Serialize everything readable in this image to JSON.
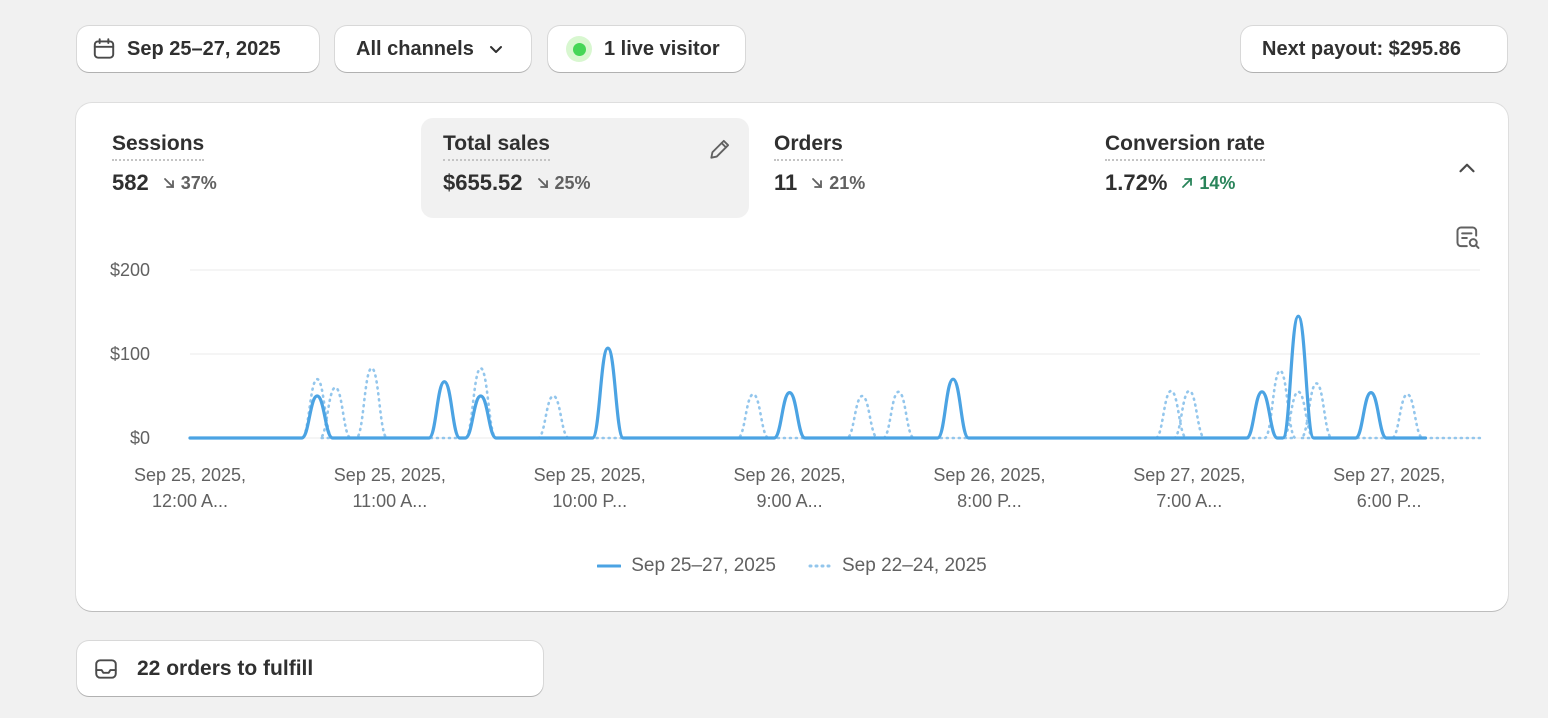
{
  "filters": {
    "date_range": "Sep 25–27, 2025",
    "channel": "All channels",
    "live_visitors": "1 live visitor",
    "payout": "Next payout: $295.86"
  },
  "metrics": [
    {
      "label": "Sessions",
      "value": "582",
      "delta": "37%",
      "direction": "down"
    },
    {
      "label": "Total sales",
      "value": "$655.52",
      "delta": "25%",
      "direction": "down"
    },
    {
      "label": "Orders",
      "value": "11",
      "delta": "21%",
      "direction": "down"
    },
    {
      "label": "Conversion rate",
      "value": "1.72%",
      "delta": "14%",
      "direction": "up"
    }
  ],
  "chart_data": {
    "type": "line",
    "title": "",
    "xlabel": "",
    "ylabel": "",
    "ylim": [
      0,
      200
    ],
    "y_ticks": [
      "$200",
      "$100",
      "$0"
    ],
    "y_tick_values": [
      200,
      100,
      0
    ],
    "x_range": [
      0,
      71
    ],
    "x_tick_positions": [
      0,
      11,
      22,
      33,
      44,
      55,
      66
    ],
    "x_tick_labels": [
      [
        "Sep 25, 2025,",
        "12:00 A..."
      ],
      [
        "Sep 25, 2025,",
        "11:00 A..."
      ],
      [
        "Sep 25, 2025,",
        "10:00 P..."
      ],
      [
        "Sep 26, 2025,",
        "9:00 A..."
      ],
      [
        "Sep 26, 2025,",
        "8:00 P..."
      ],
      [
        "Sep 27, 2025,",
        "7:00 A..."
      ],
      [
        "Sep 27, 2025,",
        "6:00 P..."
      ]
    ],
    "grid": true,
    "legend_position": "bottom",
    "series": [
      {
        "name": "Sep 25–27, 2025",
        "style": "solid",
        "color": "#4ba3e3",
        "x": [
          7,
          14,
          16,
          23,
          33,
          42,
          59,
          61,
          65
        ],
        "values": [
          50,
          67,
          50,
          107,
          54,
          70,
          55,
          145,
          54
        ]
      },
      {
        "name": "Sep 22–24, 2025",
        "style": "dotted",
        "color": "#93c6ec",
        "x": [
          7,
          8,
          10,
          16,
          20,
          31,
          37,
          39,
          54,
          55,
          60,
          61,
          62,
          67
        ],
        "values": [
          70,
          60,
          83,
          83,
          50,
          52,
          50,
          55,
          56,
          56,
          80,
          55,
          65,
          52
        ]
      }
    ]
  },
  "tasks": {
    "orders_to_fulfill": "22 orders to fulfill"
  },
  "colors": {
    "background": "#f1f1f1",
    "primary_series": "#4ba3e3",
    "comparison_series": "#93c6ec",
    "positive_delta": "#29845a",
    "live_dot": "#46d657"
  }
}
